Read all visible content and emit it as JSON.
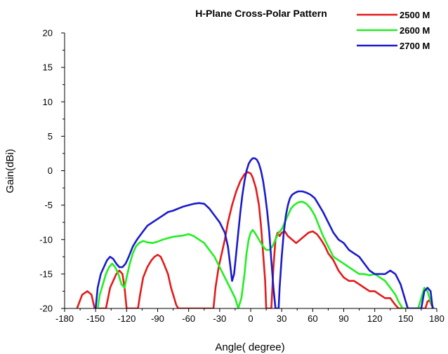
{
  "chart_data": {
    "type": "line",
    "title": "H-Plane Cross-Polar Pattern",
    "xlabel": "Angle( degree)",
    "ylabel": "Gain(dBi)",
    "xlim": [
      -180,
      180
    ],
    "ylim": [
      -20,
      20
    ],
    "xticks": [
      -180,
      -150,
      -120,
      -90,
      -60,
      -30,
      0,
      30,
      60,
      90,
      120,
      150,
      180
    ],
    "yticks": [
      -20,
      -15,
      -10,
      -5,
      0,
      5,
      10,
      15,
      20
    ],
    "grid": false,
    "legend_position": "top-right",
    "series": [
      {
        "name": "2500 M",
        "color": "#e41a1a",
        "x": [
          -168,
          -163,
          -158,
          -154,
          -151,
          -148,
          -140,
          -136,
          -133,
          -130,
          -127,
          -124,
          -122,
          -120,
          -109,
          -107,
          -104,
          -100,
          -96,
          -93,
          -90,
          -87,
          -84,
          -80,
          -77,
          -74,
          -72,
          -70,
          -36,
          -34,
          -31,
          -28,
          -25,
          -22,
          -18,
          -14,
          -10,
          -6,
          -3,
          0,
          2,
          5,
          8,
          10,
          12,
          14,
          15,
          20,
          22,
          24,
          26,
          28,
          30,
          33,
          36,
          40,
          44,
          48,
          52,
          56,
          60,
          64,
          68,
          72,
          75,
          80,
          85,
          90,
          95,
          100,
          105,
          110,
          115,
          120,
          125,
          130,
          135,
          140,
          143,
          146,
          147,
          169,
          171,
          173,
          175,
          177
        ],
        "y": [
          -20,
          -18.0,
          -17.5,
          -18.0,
          -20,
          -20,
          -20,
          -17.0,
          -16.0,
          -15.0,
          -14.5,
          -15.0,
          -17.0,
          -20,
          -20,
          -18.0,
          -15.5,
          -14.0,
          -13.0,
          -12.5,
          -12.2,
          -12.5,
          -13.5,
          -15.0,
          -17.0,
          -18.5,
          -19.5,
          -20,
          -20,
          -17.0,
          -14.0,
          -12.0,
          -10.0,
          -7.5,
          -5.0,
          -3.0,
          -1.5,
          -0.5,
          -0.2,
          -0.4,
          -1.0,
          -2.5,
          -5.0,
          -8.0,
          -12.0,
          -16.0,
          -20,
          -20,
          -14.0,
          -10.0,
          -9.0,
          -9.5,
          -9.0,
          -8.8,
          -9.5,
          -10.0,
          -10.5,
          -10.0,
          -9.5,
          -9.0,
          -8.8,
          -9.2,
          -10.0,
          -11.0,
          -12.0,
          -13.0,
          -14.5,
          -15.5,
          -16.0,
          -16.0,
          -16.5,
          -17.0,
          -17.5,
          -17.5,
          -18.0,
          -18.5,
          -18.5,
          -19.5,
          -20,
          -20,
          -20,
          -20,
          -19.0,
          -18.8,
          -19.5,
          -20
        ]
      },
      {
        "name": "2600 M",
        "color": "#22ee22",
        "x": [
          -148,
          -146,
          -143,
          -140,
          -137,
          -134,
          -131,
          -128,
          -125,
          -122,
          -120,
          -117,
          -114,
          -111,
          -108,
          -104,
          -100,
          -95,
          -90,
          -85,
          -80,
          -75,
          -70,
          -65,
          -60,
          -55,
          -50,
          -45,
          -40,
          -35,
          -30,
          -25,
          -20,
          -15,
          -12,
          -9,
          -6,
          -4,
          -2,
          0,
          2,
          4,
          6,
          8,
          10,
          12,
          15,
          18,
          21,
          24,
          27,
          30,
          33,
          36,
          39,
          42,
          46,
          50,
          54,
          58,
          62,
          66,
          70,
          75,
          80,
          85,
          90,
          95,
          100,
          105,
          110,
          115,
          120,
          125,
          130,
          135,
          140,
          143,
          145,
          147,
          148,
          162,
          165,
          168,
          171,
          174,
          177
        ],
        "y": [
          -20,
          -18.0,
          -16.5,
          -15.0,
          -14.0,
          -13.5,
          -14.0,
          -15.0,
          -16.5,
          -17.0,
          -15.5,
          -13.5,
          -12.0,
          -11.0,
          -10.5,
          -10.2,
          -10.4,
          -10.5,
          -10.3,
          -10.0,
          -9.8,
          -9.6,
          -9.5,
          -9.4,
          -9.2,
          -9.5,
          -10.0,
          -10.5,
          -11.5,
          -12.5,
          -14.0,
          -15.5,
          -17.0,
          -18.5,
          -20,
          -18.5,
          -15.0,
          -12.0,
          -10.0,
          -9.0,
          -8.6,
          -9.0,
          -9.5,
          -10.0,
          -10.5,
          -11.0,
          -11.5,
          -11.5,
          -11.0,
          -10.0,
          -9.0,
          -8.5,
          -7.5,
          -6.5,
          -5.5,
          -5.0,
          -4.6,
          -4.5,
          -4.8,
          -5.5,
          -6.5,
          -8.0,
          -9.5,
          -11.0,
          -12.5,
          -13.0,
          -13.5,
          -14.0,
          -14.5,
          -15.0,
          -15.0,
          -15.2,
          -15.0,
          -15.5,
          -16.0,
          -17.0,
          -18.0,
          -19.0,
          -19.5,
          -20,
          -20,
          -20,
          -18.5,
          -17.0,
          -17.5,
          -19.0,
          -20
        ]
      },
      {
        "name": "2700 M",
        "color": "#1a1acc",
        "x": [
          -150,
          -148,
          -145,
          -142,
          -139,
          -136,
          -133,
          -130,
          -127,
          -124,
          -121,
          -118,
          -114,
          -110,
          -105,
          -100,
          -95,
          -90,
          -85,
          -80,
          -75,
          -70,
          -65,
          -60,
          -55,
          -50,
          -45,
          -40,
          -35,
          -30,
          -25,
          -22,
          -20,
          -18,
          -16,
          -14,
          -12,
          -10,
          -8,
          -6,
          -4,
          -2,
          0,
          2,
          4,
          6,
          8,
          10,
          12,
          14,
          16,
          18,
          20,
          22,
          24,
          26,
          27,
          28,
          30,
          32,
          34,
          36,
          38,
          40,
          43,
          46,
          50,
          54,
          58,
          62,
          66,
          70,
          75,
          80,
          85,
          90,
          95,
          100,
          105,
          110,
          115,
          120,
          125,
          130,
          135,
          140,
          145,
          148,
          150,
          152,
          165,
          168,
          171,
          174,
          176
        ],
        "y": [
          -20,
          -17.0,
          -15.0,
          -14.0,
          -13.0,
          -12.5,
          -12.8,
          -13.5,
          -14.0,
          -14.0,
          -13.5,
          -12.5,
          -11.0,
          -10.0,
          -9.0,
          -8.0,
          -7.5,
          -7.0,
          -6.5,
          -6.0,
          -5.8,
          -5.5,
          -5.2,
          -5.0,
          -4.8,
          -4.7,
          -4.8,
          -5.5,
          -6.5,
          -7.5,
          -9.0,
          -11.0,
          -13.5,
          -16.0,
          -15.0,
          -12.0,
          -9.0,
          -6.0,
          -3.5,
          -1.5,
          0.0,
          1.0,
          1.5,
          1.8,
          1.8,
          1.6,
          1.0,
          0.0,
          -1.5,
          -3.5,
          -6.0,
          -9.0,
          -13.0,
          -17.0,
          -20,
          -20,
          -20,
          -17.0,
          -12.5,
          -9.0,
          -6.5,
          -5.0,
          -4.0,
          -3.5,
          -3.2,
          -3.0,
          -3.0,
          -3.2,
          -3.5,
          -4.0,
          -5.0,
          -6.0,
          -7.5,
          -9.0,
          -10.0,
          -10.5,
          -11.5,
          -12.0,
          -12.5,
          -13.5,
          -14.5,
          -15.0,
          -15.0,
          -15.0,
          -14.5,
          -15.0,
          -16.5,
          -18.0,
          -19.0,
          -20,
          -20,
          -17.5,
          -17.0,
          -17.5,
          -20
        ]
      }
    ]
  }
}
